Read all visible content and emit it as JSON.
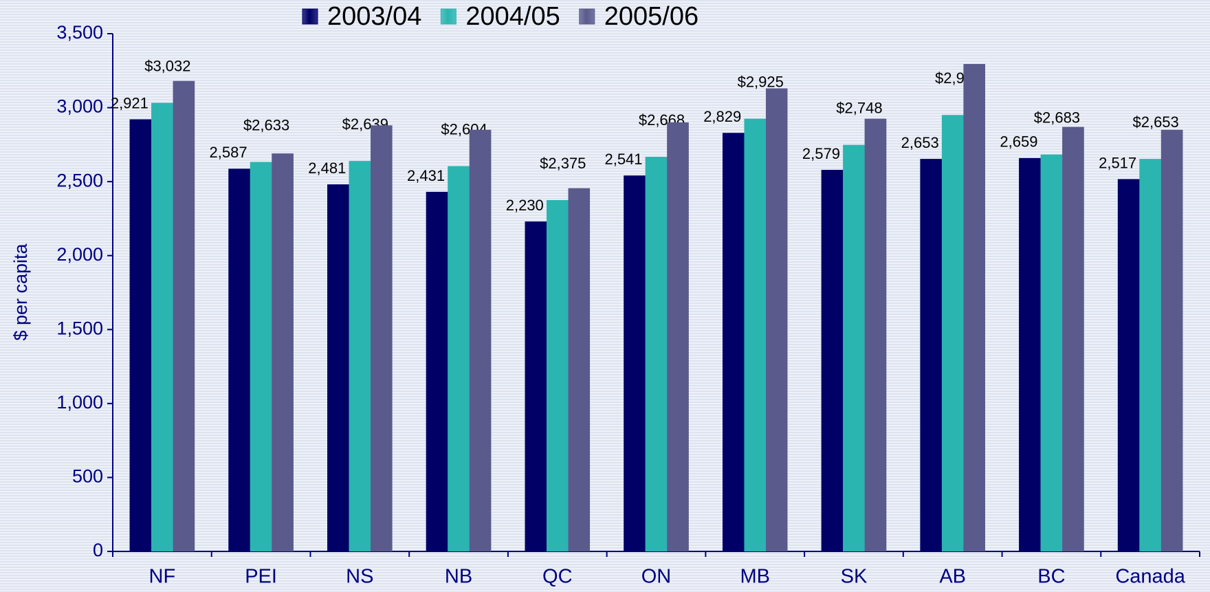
{
  "chart_data": {
    "type": "bar",
    "y_label": "$ per capita",
    "categories": [
      "NF",
      "PEI",
      "NS",
      "NB",
      "QC",
      "ON",
      "MB",
      "SK",
      "AB",
      "BC",
      "Canada"
    ],
    "series": [
      {
        "name": "2003/04",
        "color": "#000066",
        "values": [
          2921,
          2587,
          2481,
          2431,
          2230,
          2541,
          2829,
          2579,
          2653,
          2659,
          2517
        ],
        "value_labels": [
          "2,921",
          "2,587",
          "2,481",
          "2,431",
          "2,230",
          "2,541",
          "2,829",
          "2,579",
          "2,653",
          "2,659",
          "2,517"
        ]
      },
      {
        "name": "2004/05",
        "color": "#2ab5b0",
        "values": [
          3032,
          2633,
          2639,
          2604,
          2375,
          2668,
          2925,
          2748,
          2950,
          2683,
          2653
        ],
        "value_labels": [
          "$3,032",
          "$2,633",
          "$2,639",
          "$2,604",
          "$2,375",
          "$2,668",
          "$2,925",
          "$2,748",
          "$2,950",
          "$2,683",
          "$2,653"
        ]
      },
      {
        "name": "2005/06",
        "color": "#5a5a8c",
        "values": [
          3180,
          2690,
          2880,
          2850,
          2455,
          2900,
          3130,
          2925,
          3295,
          2870,
          2850
        ]
      }
    ],
    "ylim": [
      0,
      3500
    ],
    "yticks": [
      0,
      500,
      {
        "value": 1000,
        "label": "1,000"
      },
      {
        "value": 1500,
        "label": "1,500"
      },
      {
        "value": 2000,
        "label": "2,000"
      },
      {
        "value": 2500,
        "label": "2,500"
      },
      {
        "value": 3000,
        "label": "3,000"
      },
      {
        "value": 3500,
        "label": "3,500"
      }
    ],
    "legend": "top"
  }
}
